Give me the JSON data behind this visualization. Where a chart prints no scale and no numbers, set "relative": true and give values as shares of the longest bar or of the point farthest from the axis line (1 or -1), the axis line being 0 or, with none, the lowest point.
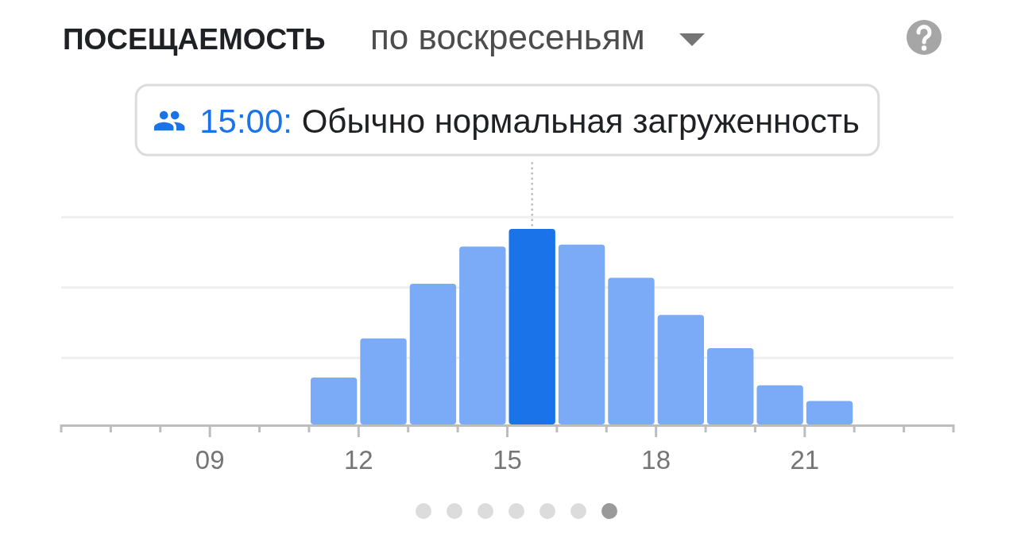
{
  "chart_data": {
    "type": "bar",
    "title": "ПОСЕЩАЕМОСТЬ",
    "subtitle": "по воскресеньям",
    "x": [
      11.5,
      12.5,
      13.5,
      14.5,
      15.5,
      16.5,
      17.5,
      18.5,
      19.5,
      20.5,
      21.5
    ],
    "values": [
      0.24,
      0.44,
      0.72,
      0.91,
      1,
      0.92,
      0.75,
      0.56,
      0.39,
      0.2,
      0.12
    ],
    "colors": [
      "#7baaf7",
      "#7baaf7",
      "#7baaf7",
      "#7baaf7",
      "#1a73e8",
      "#7baaf7",
      "#7baaf7",
      "#7baaf7",
      "#7baaf7",
      "#7baaf7",
      "#7baaf7"
    ],
    "relative": true,
    "xlim": [
      6,
      24
    ],
    "xticks": [
      {
        "value": 6,
        "label": null
      },
      {
        "value": 7,
        "label": null
      },
      {
        "value": 8,
        "label": null
      },
      {
        "value": 9,
        "label": "09"
      },
      {
        "value": 10,
        "label": null
      },
      {
        "value": 11,
        "label": null
      },
      {
        "value": 12,
        "label": "12"
      },
      {
        "value": 13,
        "label": null
      },
      {
        "value": 14,
        "label": null
      },
      {
        "value": 15,
        "label": "15"
      },
      {
        "value": 16,
        "label": null
      },
      {
        "value": 17,
        "label": null
      },
      {
        "value": 18,
        "label": "18"
      },
      {
        "value": 19,
        "label": null
      },
      {
        "value": 20,
        "label": null
      },
      {
        "value": 21,
        "label": "21"
      },
      {
        "value": 22,
        "label": null
      },
      {
        "value": 23,
        "label": null
      },
      {
        "value": 24,
        "label": null
      }
    ],
    "ref_lines": [
      {
        "axis": "y",
        "value": 0.34,
        "color": "#efefef"
      },
      {
        "axis": "y",
        "value": 0.7,
        "color": "#efefef"
      },
      {
        "axis": "y",
        "value": 1.06,
        "color": "#efefef"
      }
    ],
    "tick_labels": "x",
    "annotations": [
      {
        "text": "15:00: Обычно нормальная загруженность",
        "x": 15.5,
        "y": 1
      }
    ]
  }
}
